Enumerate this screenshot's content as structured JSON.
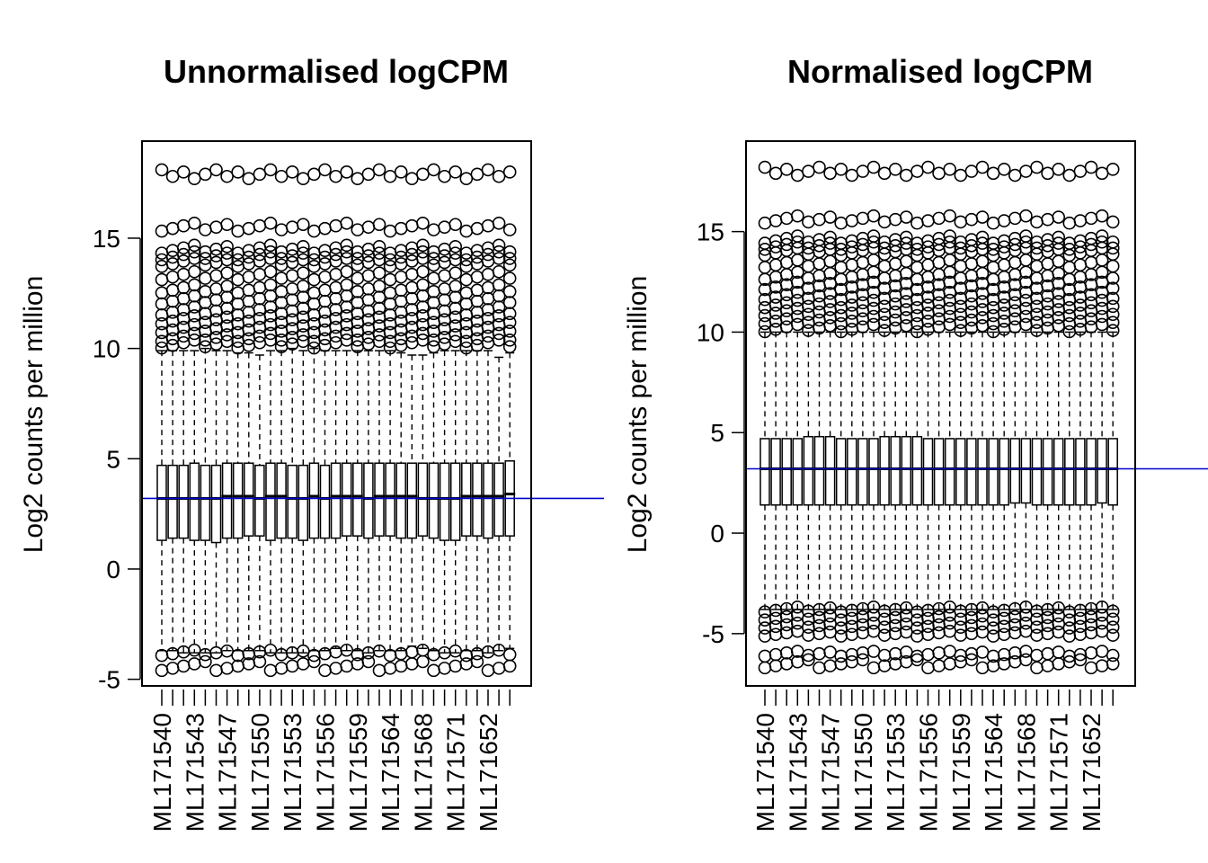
{
  "colors": {
    "median_line": "#0000cc",
    "frame": "#000000",
    "background": "#ffffff"
  },
  "chart_data": [
    {
      "type": "boxplot",
      "title": "Unnormalised logCPM",
      "ylabel": "Log2 counts per million",
      "xlabel": "",
      "ylim": [
        -5.3,
        19.4
      ],
      "yticks": [
        -5,
        0,
        5,
        10,
        15
      ],
      "grid": false,
      "legend": "none",
      "reference_line": {
        "y": 3.2,
        "color": "#0000cc"
      },
      "xtick_labels": [
        "ML171540",
        "ML171543",
        "ML171547",
        "ML171550",
        "ML171553",
        "ML171556",
        "ML171559",
        "ML171564",
        "ML171568",
        "ML171571",
        "ML171652"
      ],
      "n_samples": 33,
      "series": [
        {
          "q1": 1.3,
          "median": 3.2,
          "q3": 4.7,
          "whisker_low": -3.7,
          "whisker_high": 9.9
        },
        {
          "q1": 1.4,
          "median": 3.2,
          "q3": 4.7,
          "whisker_low": -3.7,
          "whisker_high": 9.9
        },
        {
          "q1": 1.4,
          "median": 3.2,
          "q3": 4.7,
          "whisker_low": -3.8,
          "whisker_high": 9.9
        },
        {
          "q1": 1.3,
          "median": 3.2,
          "q3": 4.8,
          "whisker_low": -3.8,
          "whisker_high": 9.9
        },
        {
          "q1": 1.3,
          "median": 3.2,
          "q3": 4.7,
          "whisker_low": -3.8,
          "whisker_high": 10.0
        },
        {
          "q1": 1.2,
          "median": 3.2,
          "q3": 4.7,
          "whisker_low": -3.8,
          "whisker_high": 9.9
        },
        {
          "q1": 1.4,
          "median": 3.3,
          "q3": 4.8,
          "whisker_low": -3.7,
          "whisker_high": 9.9
        },
        {
          "q1": 1.4,
          "median": 3.3,
          "q3": 4.8,
          "whisker_low": -3.7,
          "whisker_high": 9.8
        },
        {
          "q1": 1.5,
          "median": 3.3,
          "q3": 4.8,
          "whisker_low": -3.7,
          "whisker_high": 9.8
        },
        {
          "q1": 1.5,
          "median": 3.2,
          "q3": 4.7,
          "whisker_low": -3.7,
          "whisker_high": 9.7
        },
        {
          "q1": 1.3,
          "median": 3.3,
          "q3": 4.8,
          "whisker_low": -3.8,
          "whisker_high": 9.9
        },
        {
          "q1": 1.4,
          "median": 3.3,
          "q3": 4.8,
          "whisker_low": -3.8,
          "whisker_high": 9.9
        },
        {
          "q1": 1.4,
          "median": 3.2,
          "q3": 4.7,
          "whisker_low": -3.8,
          "whisker_high": 10.0
        },
        {
          "q1": 1.3,
          "median": 3.2,
          "q3": 4.7,
          "whisker_low": -3.8,
          "whisker_high": 9.9
        },
        {
          "q1": 1.4,
          "median": 3.3,
          "q3": 4.8,
          "whisker_low": -3.7,
          "whisker_high": 10.0
        },
        {
          "q1": 1.4,
          "median": 3.2,
          "q3": 4.7,
          "whisker_low": -3.7,
          "whisker_high": 9.9
        },
        {
          "q1": 1.4,
          "median": 3.3,
          "q3": 4.8,
          "whisker_low": -3.6,
          "whisker_high": 9.9
        },
        {
          "q1": 1.5,
          "median": 3.3,
          "q3": 4.8,
          "whisker_low": -3.7,
          "whisker_high": 9.9
        },
        {
          "q1": 1.5,
          "median": 3.3,
          "q3": 4.8,
          "whisker_low": -3.7,
          "whisker_high": 9.9
        },
        {
          "q1": 1.4,
          "median": 3.2,
          "q3": 4.8,
          "whisker_low": -3.8,
          "whisker_high": 9.9
        },
        {
          "q1": 1.5,
          "median": 3.3,
          "q3": 4.8,
          "whisker_low": -3.7,
          "whisker_high": 9.9
        },
        {
          "q1": 1.5,
          "median": 3.3,
          "q3": 4.8,
          "whisker_low": -3.7,
          "whisker_high": 9.9
        },
        {
          "q1": 1.4,
          "median": 3.3,
          "q3": 4.8,
          "whisker_low": -3.7,
          "whisker_high": 9.8
        },
        {
          "q1": 1.4,
          "median": 3.3,
          "q3": 4.8,
          "whisker_low": -3.5,
          "whisker_high": 9.7
        },
        {
          "q1": 1.5,
          "median": 3.2,
          "q3": 4.8,
          "whisker_low": -3.6,
          "whisker_high": 9.7
        },
        {
          "q1": 1.4,
          "median": 3.2,
          "q3": 4.8,
          "whisker_low": -3.7,
          "whisker_high": 9.8
        },
        {
          "q1": 1.3,
          "median": 3.2,
          "q3": 4.8,
          "whisker_low": -3.8,
          "whisker_high": 9.9
        },
        {
          "q1": 1.3,
          "median": 3.2,
          "q3": 4.8,
          "whisker_low": -3.8,
          "whisker_high": 9.9
        },
        {
          "q1": 1.5,
          "median": 3.3,
          "q3": 4.8,
          "whisker_low": -3.7,
          "whisker_high": 9.9
        },
        {
          "q1": 1.5,
          "median": 3.3,
          "q3": 4.8,
          "whisker_low": -3.7,
          "whisker_high": 9.9
        },
        {
          "q1": 1.4,
          "median": 3.3,
          "q3": 4.8,
          "whisker_low": -3.8,
          "whisker_high": 9.9
        },
        {
          "q1": 1.5,
          "median": 3.3,
          "q3": 4.8,
          "whisker_low": -3.7,
          "whisker_high": 9.6
        },
        {
          "q1": 1.5,
          "median": 3.4,
          "q3": 4.9,
          "whisker_low": -3.6,
          "whisker_high": 9.8
        }
      ],
      "outliers_low": [
        -3.8,
        -4.4
      ],
      "outliers_high": [
        10.2,
        10.5,
        10.9,
        11.3,
        11.7,
        12.2,
        12.7,
        13.3,
        13.9,
        14.2,
        14.5,
        15.5,
        18.1
      ]
    },
    {
      "type": "boxplot",
      "title": "Normalised logCPM",
      "ylabel": "Log2 counts per million",
      "xlabel": "",
      "ylim": [
        -7.6,
        19.5
      ],
      "yticks": [
        -5,
        0,
        5,
        10,
        15
      ],
      "grid": false,
      "legend": "none",
      "reference_line": {
        "y": 3.2,
        "color": "#0000cc"
      },
      "xtick_labels": [
        "ML171540",
        "ML171543",
        "ML171547",
        "ML171550",
        "ML171553",
        "ML171556",
        "ML171559",
        "ML171564",
        "ML171568",
        "ML171571",
        "ML171652"
      ],
      "n_samples": 33,
      "series": [
        {
          "q1": 1.4,
          "median": 3.2,
          "q3": 4.7,
          "whisker_low": -3.8,
          "whisker_high": 10.0
        },
        {
          "q1": 1.4,
          "median": 3.2,
          "q3": 4.7,
          "whisker_low": -3.8,
          "whisker_high": 10.0
        },
        {
          "q1": 1.4,
          "median": 3.2,
          "q3": 4.7,
          "whisker_low": -3.8,
          "whisker_high": 10.0
        },
        {
          "q1": 1.4,
          "median": 3.2,
          "q3": 4.7,
          "whisker_low": -3.8,
          "whisker_high": 10.0
        },
        {
          "q1": 1.4,
          "median": 3.2,
          "q3": 4.8,
          "whisker_low": -3.8,
          "whisker_high": 10.0
        },
        {
          "q1": 1.4,
          "median": 3.2,
          "q3": 4.8,
          "whisker_low": -3.8,
          "whisker_high": 10.0
        },
        {
          "q1": 1.4,
          "median": 3.2,
          "q3": 4.8,
          "whisker_low": -3.8,
          "whisker_high": 10.0
        },
        {
          "q1": 1.4,
          "median": 3.2,
          "q3": 4.7,
          "whisker_low": -3.8,
          "whisker_high": 10.0
        },
        {
          "q1": 1.4,
          "median": 3.2,
          "q3": 4.7,
          "whisker_low": -3.8,
          "whisker_high": 10.0
        },
        {
          "q1": 1.4,
          "median": 3.2,
          "q3": 4.7,
          "whisker_low": -3.8,
          "whisker_high": 10.0
        },
        {
          "q1": 1.4,
          "median": 3.2,
          "q3": 4.7,
          "whisker_low": -3.8,
          "whisker_high": 10.0
        },
        {
          "q1": 1.4,
          "median": 3.2,
          "q3": 4.8,
          "whisker_low": -3.8,
          "whisker_high": 10.0
        },
        {
          "q1": 1.4,
          "median": 3.2,
          "q3": 4.8,
          "whisker_low": -3.8,
          "whisker_high": 10.0
        },
        {
          "q1": 1.4,
          "median": 3.2,
          "q3": 4.8,
          "whisker_low": -3.8,
          "whisker_high": 10.0
        },
        {
          "q1": 1.4,
          "median": 3.2,
          "q3": 4.8,
          "whisker_low": -3.8,
          "whisker_high": 10.0
        },
        {
          "q1": 1.4,
          "median": 3.2,
          "q3": 4.7,
          "whisker_low": -3.8,
          "whisker_high": 10.0
        },
        {
          "q1": 1.4,
          "median": 3.2,
          "q3": 4.7,
          "whisker_low": -3.8,
          "whisker_high": 10.0
        },
        {
          "q1": 1.4,
          "median": 3.2,
          "q3": 4.7,
          "whisker_low": -3.8,
          "whisker_high": 10.0
        },
        {
          "q1": 1.4,
          "median": 3.2,
          "q3": 4.7,
          "whisker_low": -3.8,
          "whisker_high": 10.0
        },
        {
          "q1": 1.4,
          "median": 3.2,
          "q3": 4.7,
          "whisker_low": -3.8,
          "whisker_high": 10.0
        },
        {
          "q1": 1.4,
          "median": 3.2,
          "q3": 4.7,
          "whisker_low": -3.8,
          "whisker_high": 10.0
        },
        {
          "q1": 1.4,
          "median": 3.2,
          "q3": 4.7,
          "whisker_low": -3.8,
          "whisker_high": 10.0
        },
        {
          "q1": 1.4,
          "median": 3.2,
          "q3": 4.7,
          "whisker_low": -3.8,
          "whisker_high": 10.0
        },
        {
          "q1": 1.5,
          "median": 3.2,
          "q3": 4.7,
          "whisker_low": -3.8,
          "whisker_high": 10.0
        },
        {
          "q1": 1.5,
          "median": 3.2,
          "q3": 4.7,
          "whisker_low": -3.8,
          "whisker_high": 10.0
        },
        {
          "q1": 1.4,
          "median": 3.2,
          "q3": 4.7,
          "whisker_low": -3.8,
          "whisker_high": 10.0
        },
        {
          "q1": 1.4,
          "median": 3.2,
          "q3": 4.7,
          "whisker_low": -3.8,
          "whisker_high": 10.0
        },
        {
          "q1": 1.4,
          "median": 3.2,
          "q3": 4.7,
          "whisker_low": -3.8,
          "whisker_high": 10.0
        },
        {
          "q1": 1.4,
          "median": 3.2,
          "q3": 4.7,
          "whisker_low": -3.8,
          "whisker_high": 10.0
        },
        {
          "q1": 1.4,
          "median": 3.2,
          "q3": 4.7,
          "whisker_low": -3.8,
          "whisker_high": 10.0
        },
        {
          "q1": 1.4,
          "median": 3.2,
          "q3": 4.7,
          "whisker_low": -3.8,
          "whisker_high": 10.0
        },
        {
          "q1": 1.5,
          "median": 3.2,
          "q3": 4.7,
          "whisker_low": -3.8,
          "whisker_high": 10.0
        },
        {
          "q1": 1.4,
          "median": 3.2,
          "q3": 4.7,
          "whisker_low": -3.8,
          "whisker_high": 10.0
        }
      ],
      "outliers_low": [
        -3.8,
        -4.2,
        -4.6,
        -5.0,
        -6.0,
        -6.5
      ],
      "outliers_high": [
        10.2,
        10.6,
        11.0,
        11.4,
        11.8,
        12.3,
        12.8,
        13.4,
        14.0,
        14.3,
        14.6,
        15.6,
        18.2
      ]
    }
  ]
}
